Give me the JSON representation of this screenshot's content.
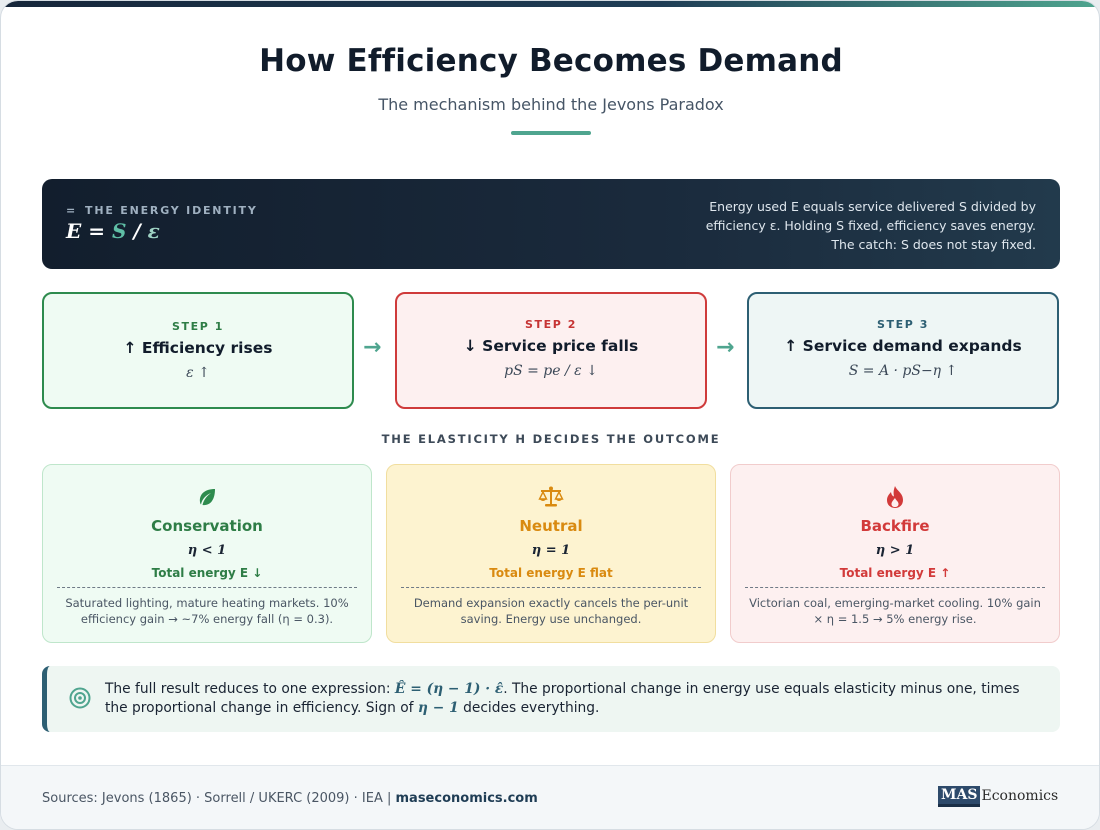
{
  "header": {
    "title": "How Efficiency Becomes Demand",
    "subtitle": "The mechanism behind the Jevons Paradox"
  },
  "identity": {
    "label": "THE ENERGY IDENTITY",
    "label_icon": "equals-icon",
    "formula_e": "E",
    "formula_eq": " = ",
    "formula_s": "S",
    "formula_div": " / ",
    "formula_eps": "ε",
    "desc_line1": "Energy used E equals service delivered S divided by",
    "desc_line2": "efficiency ε. Holding S fixed, efficiency saves energy.",
    "desc_line3": "The catch: S does not stay fixed."
  },
  "steps": [
    {
      "num": "STEP 1",
      "title": "↑ Efficiency rises",
      "formula": "ε ↑"
    },
    {
      "num": "STEP 2",
      "title": "↓ Service price falls",
      "formula": "pS = pe / ε ↓"
    },
    {
      "num": "STEP 3",
      "title": "↑ Service demand expands",
      "formula": "S = A · pS−η ↑"
    }
  ],
  "arrows": [
    "→",
    "→"
  ],
  "elasticity_heading": "THE ELASTICITY Η DECIDES THE OUTCOME",
  "outcomes": [
    {
      "icon": "leaf-icon",
      "title": "Conservation",
      "condition": "η < 1",
      "energy": "Total energy E ↓",
      "desc": "Saturated lighting, mature heating markets. 10% efficiency gain → ~7% energy fall (η = 0.3)."
    },
    {
      "icon": "scale-icon",
      "title": "Neutral",
      "condition": "η = 1",
      "energy": "Total energy E flat",
      "desc": "Demand expansion exactly cancels the per-unit saving. Energy use unchanged."
    },
    {
      "icon": "flame-icon",
      "title": "Backfire",
      "condition": "η > 1",
      "energy": "Total energy E ↑",
      "desc": "Victorian coal, emerging-market cooling. 10% gain × η = 1.5 → 5% energy rise."
    }
  ],
  "callout": {
    "icon": "target-icon",
    "text_pre": "The full result reduces to one expression: ",
    "expr": "Ê = (η − 1) · ε̂",
    "text_mid": ". The proportional change in energy use equals elasticity minus one, times the proportional change in efficiency. Sign of ",
    "expr2": "η − 1",
    "text_post": " decides everything."
  },
  "footer": {
    "sources": "Sources: Jevons (1865) · Sorrell / UKERC (2009) · IEA | ",
    "site": "maseconomics.com",
    "logo_mas": "MAS",
    "logo_rest": "Economics"
  },
  "colors": {
    "accent": "#4fa58f",
    "navy": "#121e2d",
    "green": "#2e7d46",
    "red": "#cf3b3b",
    "amber": "#d98a10",
    "teal": "#2d5f73"
  }
}
